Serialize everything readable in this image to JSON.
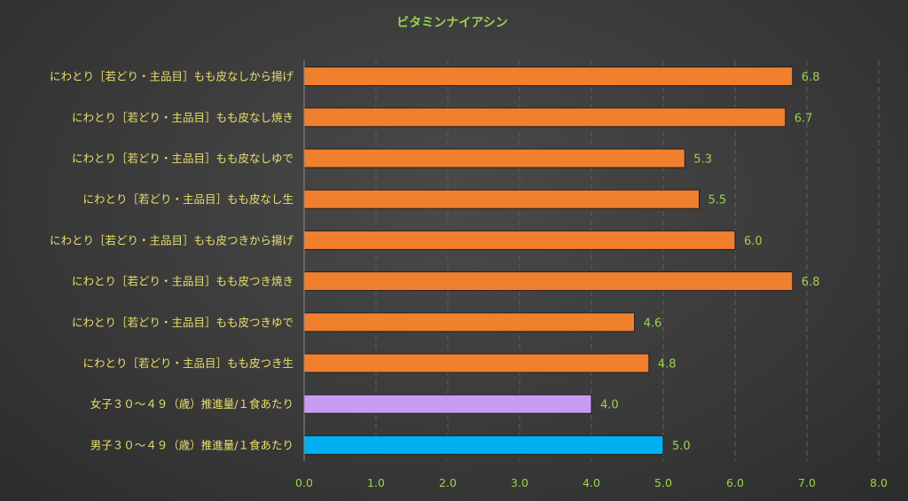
{
  "chart_data": {
    "type": "bar",
    "orientation": "horizontal",
    "title": "ビタミンナイアシン",
    "xlabel": "",
    "ylabel": "",
    "xlim": [
      0,
      8
    ],
    "ticks": [
      "0.0",
      "1.0",
      "2.0",
      "3.0",
      "4.0",
      "5.0",
      "6.0",
      "7.0",
      "8.0"
    ],
    "grid": true,
    "categories": [
      "にわとり［若どり・主品目］もも皮なしから揚げ",
      "にわとり［若どり・主品目］もも皮なし焼き",
      "にわとり［若どり・主品目］もも皮なしゆで",
      "にわとり［若どり・主品目］もも皮なし生",
      "にわとり［若どり・主品目］もも皮つきから揚げ",
      "にわとり［若どり・主品目］もも皮つき焼き",
      "にわとり［若どり・主品目］もも皮つきゆで",
      "にわとり［若どり・主品目］もも皮つき生",
      "女子３０～４９（歳）推進量/１食あたり",
      "男子３０～４９（歳）推進量/１食あたり"
    ],
    "values": [
      6.8,
      6.7,
      5.3,
      5.5,
      6.0,
      6.8,
      4.6,
      4.8,
      4.0,
      5.0
    ],
    "value_labels": [
      "6.8",
      "6.7",
      "5.3",
      "5.5",
      "6.0",
      "6.8",
      "4.6",
      "4.8",
      "4.0",
      "5.0"
    ],
    "colors": [
      "#f07f2e",
      "#f07f2e",
      "#f07f2e",
      "#f07f2e",
      "#f07f2e",
      "#f07f2e",
      "#f07f2e",
      "#f07f2e",
      "#c79bf2",
      "#00b0f0"
    ]
  }
}
